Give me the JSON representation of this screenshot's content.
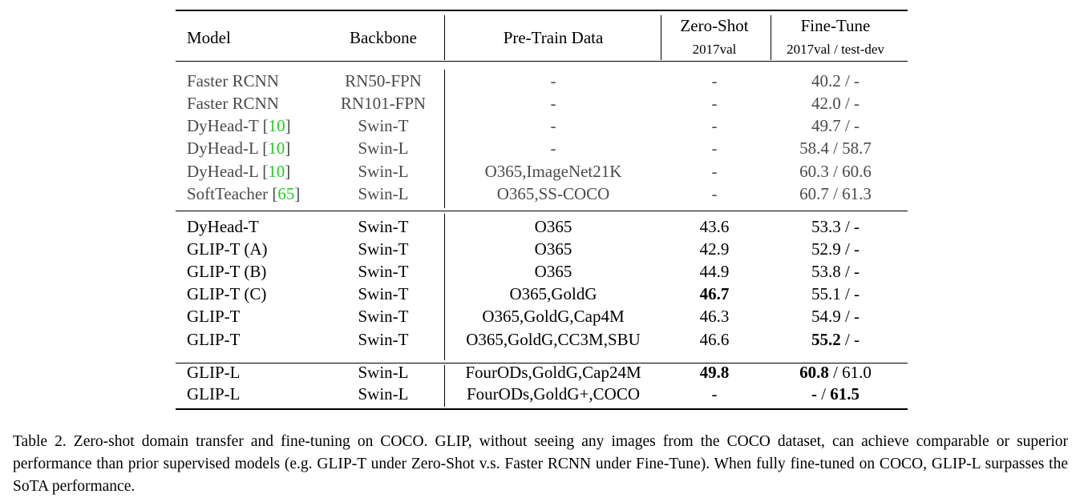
{
  "table": {
    "headers": {
      "model": "Model",
      "backbone": "Backbone",
      "pretrain": "Pre-Train Data",
      "zeroshot": "Zero-Shot",
      "zeroshot_sub": "2017val",
      "finetune": "Fine-Tune",
      "finetune_sub": "2017val / test-dev"
    },
    "rows": [
      {
        "model": "Faster RCNN",
        "cite": "",
        "backbone": "RN50-FPN",
        "pretrain": "-",
        "zeroshot": "-",
        "ft_val": "40.2",
        "ft_test": "-",
        "gray": true
      },
      {
        "model": "Faster RCNN",
        "cite": "",
        "backbone": "RN101-FPN",
        "pretrain": "-",
        "zeroshot": "-",
        "ft_val": "42.0",
        "ft_test": "-",
        "gray": true
      },
      {
        "model": "DyHead-T",
        "cite": "10",
        "backbone": "Swin-T",
        "pretrain": "-",
        "zeroshot": "-",
        "ft_val": "49.7",
        "ft_test": "-",
        "gray": true
      },
      {
        "model": "DyHead-L",
        "cite": "10",
        "backbone": "Swin-L",
        "pretrain": "-",
        "zeroshot": "-",
        "ft_val": "58.4",
        "ft_test": "58.7",
        "gray": true
      },
      {
        "model": "DyHead-L",
        "cite": "10",
        "backbone": "Swin-L",
        "pretrain": "O365,ImageNet21K",
        "zeroshot": "-",
        "ft_val": "60.3",
        "ft_test": "60.6",
        "gray": true
      },
      {
        "model": "SoftTeacher",
        "cite": "65",
        "backbone": "Swin-L",
        "pretrain": "O365,SS-COCO",
        "zeroshot": "-",
        "ft_val": "60.7",
        "ft_test": "61.3",
        "gray": true
      },
      {
        "model": "DyHead-T",
        "cite": "",
        "backbone": "Swin-T",
        "pretrain": "O365",
        "zeroshot": "43.6",
        "ft_val": "53.3",
        "ft_test": "-"
      },
      {
        "model": "GLIP-T (A)",
        "cite": "",
        "backbone": "Swin-T",
        "pretrain": "O365",
        "zeroshot": "42.9",
        "ft_val": "52.9",
        "ft_test": "-"
      },
      {
        "model": "GLIP-T (B)",
        "cite": "",
        "backbone": "Swin-T",
        "pretrain": "O365",
        "zeroshot": "44.9",
        "ft_val": "53.8",
        "ft_test": "-"
      },
      {
        "model": "GLIP-T (C)",
        "cite": "",
        "backbone": "Swin-T",
        "pretrain": "O365,GoldG",
        "zeroshot": "46.7",
        "zs_bold": true,
        "ft_val": "55.1",
        "ft_test": "-"
      },
      {
        "model": "GLIP-T",
        "cite": "",
        "backbone": "Swin-T",
        "pretrain": "O365,GoldG,Cap4M",
        "zeroshot": "46.3",
        "ft_val": "54.9",
        "ft_test": "-"
      },
      {
        "model": "GLIP-T",
        "cite": "",
        "backbone": "Swin-T",
        "pretrain": "O365,GoldG,CC3M,SBU",
        "zeroshot": "46.6",
        "ft_val": "55.2",
        "val_bold": true,
        "ft_test": "-"
      },
      {
        "model": "GLIP-L",
        "cite": "",
        "backbone": "Swin-L",
        "pretrain": "FourODs,GoldG,Cap24M",
        "zeroshot": "49.8",
        "zs_bold": true,
        "ft_val": "60.8",
        "val_bold": true,
        "ft_test": "61.0"
      },
      {
        "model": "GLIP-L",
        "cite": "",
        "backbone": "Swin-L",
        "pretrain": "FourODs,GoldG+,COCO",
        "zeroshot": "-",
        "ft_val": "-",
        "val_bold": true,
        "ft_test": "61.5",
        "test_bold": true
      }
    ]
  },
  "caption": "Table 2. Zero-shot domain transfer and fine-tuning on COCO. GLIP, without seeing any images from the COCO dataset, can achieve comparable or superior performance than prior supervised models (e.g. GLIP-T under Zero-Shot v.s. Faster RCNN under Fine-Tune). When fully fine-tuned on COCO, GLIP-L surpasses the SoTA performance.",
  "colors": {
    "citation": "#22cc22",
    "baseline_text": "#4a4a4a"
  }
}
